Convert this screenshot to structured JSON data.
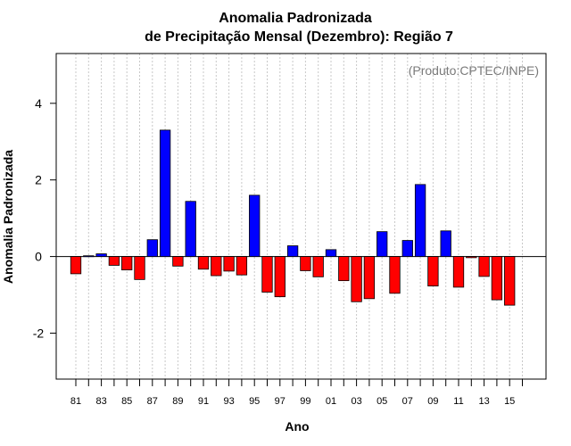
{
  "chart_data": {
    "type": "bar",
    "title": "Anomalia Padronizada",
    "subtitle": "de Precipitação Mensal (Dezembro): Região 7",
    "xlabel": "Ano",
    "ylabel": "Anomalia Padronizada",
    "annotation": "(Produto:CPTEC/INPE)",
    "ylim": [
      -3.2,
      5.3
    ],
    "yticks": [
      -2,
      0,
      2,
      4
    ],
    "grid": "vertical dotted",
    "positive_color": "#0000ff",
    "negative_color": "#ff0000",
    "categories": [
      "81",
      "82",
      "83",
      "84",
      "85",
      "86",
      "87",
      "88",
      "89",
      "90",
      "91",
      "92",
      "93",
      "94",
      "95",
      "96",
      "97",
      "98",
      "99",
      "00",
      "01",
      "02",
      "03",
      "04",
      "05",
      "06",
      "07",
      "08",
      "09",
      "10",
      "11",
      "12",
      "13",
      "14",
      "15"
    ],
    "xtick_labels": [
      "81",
      "83",
      "85",
      "87",
      "89",
      "91",
      "93",
      "95",
      "97",
      "99",
      "01",
      "03",
      "05",
      "07",
      "09",
      "11",
      "13",
      "15"
    ],
    "values": [
      -0.45,
      0.02,
      0.07,
      -0.23,
      -0.35,
      -0.6,
      0.44,
      3.3,
      -0.25,
      1.44,
      -0.33,
      -0.5,
      -0.38,
      -0.48,
      1.6,
      -0.93,
      -1.05,
      0.28,
      -0.37,
      -0.53,
      0.18,
      -0.63,
      -1.18,
      -1.1,
      0.65,
      -0.96,
      0.42,
      1.88,
      -0.77,
      0.67,
      -0.8,
      -0.03,
      -0.52,
      -1.13,
      -1.27
    ]
  }
}
